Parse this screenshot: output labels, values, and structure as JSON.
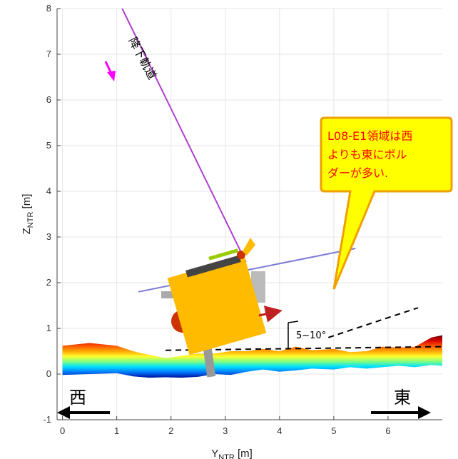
{
  "chart_data": {
    "type": "scatter",
    "title": "",
    "xlabel": {
      "main": "Y",
      "sub": "NTR",
      "unit": " [m]"
    },
    "ylabel": {
      "main": "Z",
      "sub": "NTR",
      "unit": " [m]"
    },
    "xlim": [
      -0.1,
      7
    ],
    "ylim": [
      -1,
      8
    ],
    "xticks": [
      0,
      1,
      2,
      3,
      4,
      5,
      6
    ],
    "yticks": [
      -1,
      0,
      1,
      2,
      3,
      4,
      5,
      6,
      7,
      8
    ],
    "grid": true,
    "series": [
      {
        "name": "降下軌道",
        "type": "line",
        "color": "#b040d0",
        "x": [
          1.1,
          3.38
        ],
        "y": [
          8.0,
          2.45
        ]
      },
      {
        "name": "",
        "type": "line",
        "color": "#7b7bd8",
        "x": [
          1.4,
          5.4
        ],
        "y": [
          1.8,
          2.75
        ]
      },
      {
        "name": "",
        "type": "dashed",
        "color": "#000000",
        "x": [
          1.9,
          7.0
        ],
        "y": [
          0.52,
          0.6
        ]
      },
      {
        "name": "",
        "type": "dashed",
        "color": "#000000",
        "x": [
          4.9,
          6.55
        ],
        "y": [
          0.8,
          1.45
        ]
      }
    ],
    "terrain": {
      "x": [
        0,
        0.5,
        1.0,
        1.3,
        1.6,
        1.9,
        2.2,
        2.5,
        2.8,
        3.1,
        3.4,
        3.7,
        4.0,
        4.3,
        4.6,
        5.0,
        5.3,
        5.6,
        5.9,
        6.2,
        6.5,
        6.8,
        7.0
      ],
      "top": [
        0.62,
        0.68,
        0.62,
        0.5,
        0.42,
        0.35,
        0.4,
        0.45,
        0.45,
        0.5,
        0.5,
        0.55,
        0.5,
        0.6,
        0.52,
        0.55,
        0.48,
        0.5,
        0.6,
        0.58,
        0.6,
        0.8,
        0.85
      ],
      "bottom": [
        -0.02,
        0.0,
        0.02,
        -0.05,
        -0.08,
        -0.07,
        -0.08,
        -0.06,
        0.0,
        -0.02,
        0.05,
        0.1,
        0.05,
        0.08,
        0.12,
        0.1,
        0.15,
        0.12,
        0.15,
        0.18,
        0.15,
        0.2,
        0.18
      ]
    },
    "annotations": {
      "trajectory_label": "降下軌道",
      "angle_label": "5~10°",
      "west": "西",
      "east": "東",
      "callout": [
        "L08-E1領域は西",
        "よりも東にボル",
        "ダーが多い."
      ]
    }
  },
  "colors": {
    "trajectory": "#b040d0",
    "magenta_arrow": "#ff00ff",
    "spacecraft_body": "#ffbb00",
    "callout_fill": "#ffff00",
    "callout_border": "#f0a000",
    "callout_text": "#ff0000"
  }
}
